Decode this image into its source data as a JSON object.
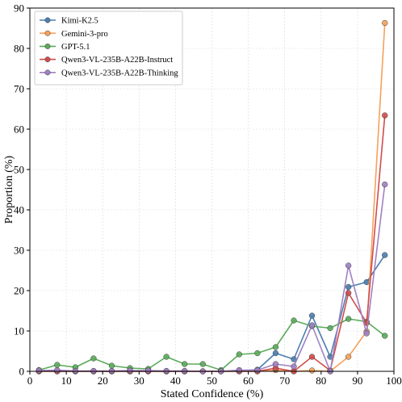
{
  "chart_data": {
    "type": "line",
    "xlabel": "Stated Confidence (%)",
    "ylabel": "Proportion (%)",
    "xlim": [
      0,
      100
    ],
    "ylim": [
      0,
      90
    ],
    "xticks": [
      0,
      10,
      20,
      30,
      40,
      50,
      60,
      70,
      80,
      90,
      100
    ],
    "yticks": [
      0,
      10,
      20,
      30,
      40,
      50,
      60,
      70,
      80,
      90
    ],
    "grid": true,
    "legend_position": "top-left",
    "x": [
      2.5,
      7.5,
      12.5,
      17.5,
      22.5,
      27.5,
      32.5,
      37.5,
      42.5,
      47.5,
      52.5,
      57.5,
      62.5,
      67.5,
      72.5,
      77.5,
      82.5,
      87.5,
      92.5,
      97.5
    ],
    "series": [
      {
        "name": "Kimi-K2.5",
        "color": "#4c7fb0",
        "values": [
          0.2,
          0,
          0,
          0,
          0,
          0,
          0,
          0,
          0,
          0,
          0,
          0.2,
          0.4,
          4.5,
          3.0,
          13.8,
          3.6,
          20.9,
          22.1,
          28.8
        ]
      },
      {
        "name": "Gemini-3-pro",
        "color": "#f5a15a",
        "values": [
          0,
          0,
          0,
          0,
          0,
          0,
          0,
          0,
          0,
          0,
          0,
          0,
          0,
          0.3,
          0,
          0.2,
          0,
          3.6,
          9.9,
          86.3
        ]
      },
      {
        "name": "GPT-5.1",
        "color": "#5aab5a",
        "values": [
          0.3,
          1.6,
          1.0,
          3.2,
          1.4,
          0.8,
          0.6,
          3.6,
          1.8,
          1.8,
          0.3,
          4.2,
          4.5,
          6.0,
          12.6,
          11.2,
          10.7,
          13.0,
          12.3,
          8.8
        ]
      },
      {
        "name": "Qwen3-VL-235B-A22B-Instruct",
        "color": "#d04c4c",
        "values": [
          0,
          0,
          0,
          0,
          0,
          0,
          0,
          0,
          0,
          0,
          0,
          0,
          0,
          0.8,
          0,
          3.6,
          0.2,
          19.4,
          12.0,
          63.4
        ]
      },
      {
        "name": "Qwen3-VL-235B-A22B-Thinking",
        "color": "#a081c2",
        "values": [
          0.2,
          0.3,
          0.1,
          0.1,
          0.1,
          0.2,
          0.2,
          0.1,
          0.1,
          0,
          0,
          0.3,
          0.3,
          1.8,
          1.2,
          11.4,
          0,
          26.2,
          9.4,
          46.3
        ]
      }
    ]
  }
}
